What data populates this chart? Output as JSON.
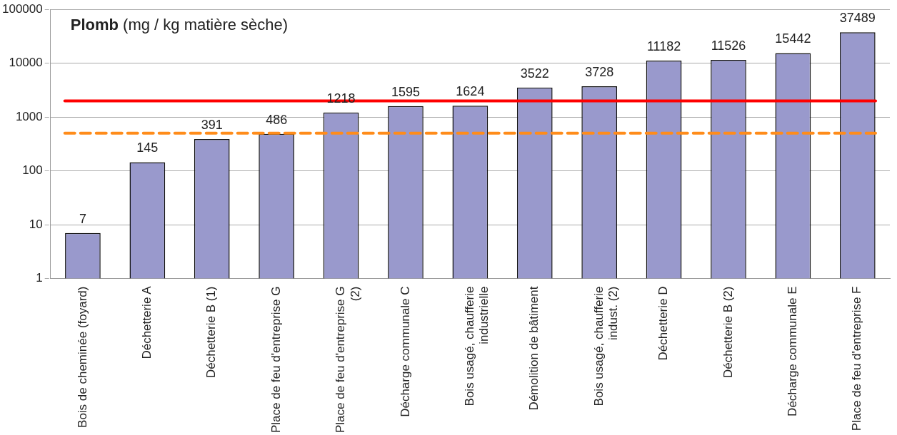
{
  "chart_data": {
    "type": "bar",
    "title": "Plomb (mg / kg matière sèche)",
    "categories": [
      "Bois de cheminée (foyard)",
      "Déchetterie A",
      "Déchetterie B (1)",
      "Place de feu d'entreprise G",
      "Place de feu d'entreprise G (2)",
      "Décharge communale C",
      "Bois usagé, chaufferie industrielle",
      "Démolition de bâtiment",
      "Bois usagé, chaufferie indust. (2)",
      "Déchetterie D",
      "Déchetterie B (2)",
      "Décharge communale E",
      "Place de feu d'entreprise F"
    ],
    "values": [
      7,
      145,
      391,
      486,
      1218,
      1595,
      1624,
      3522,
      3728,
      11182,
      11526,
      15442,
      37489
    ],
    "color": "#9999cc",
    "data_labels": true,
    "log": "y",
    "ylim": [
      1,
      100000
    ],
    "yticks": [
      1,
      10,
      100,
      1000,
      10000,
      100000
    ],
    "grid": "y",
    "ref_lines": [
      {
        "axis": "y",
        "value": 2000,
        "color": "#ff0000",
        "line_style": "solid"
      },
      {
        "axis": "y",
        "value": 500,
        "color": "#ff8c1a",
        "line_style": "dashed"
      }
    ]
  }
}
